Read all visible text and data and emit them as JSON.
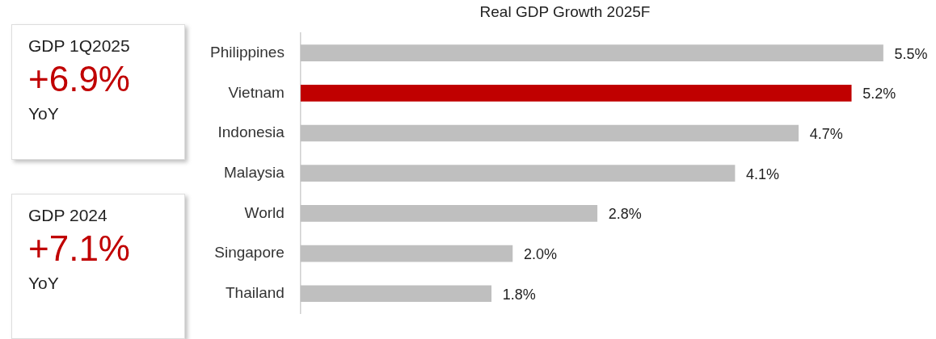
{
  "chart_data": [
    {
      "type": "other",
      "title": "GDP 1Q2025",
      "annotations": [
        "+6.9%",
        "YoY"
      ]
    },
    {
      "type": "other",
      "title": "GDP 2024",
      "annotations": [
        "+7.1%",
        "YoY"
      ]
    },
    {
      "type": "bar",
      "orientation": "horizontal",
      "title": "Real GDP Growth 2025F",
      "categories": [
        "Philippines",
        "Vietnam",
        "Indonesia",
        "Malaysia",
        "World",
        "Singapore",
        "Thailand"
      ],
      "values": [
        5.5,
        5.2,
        4.7,
        4.1,
        2.8,
        2.0,
        1.8
      ],
      "colors": [
        "#bfbfbf",
        "#c00000",
        "#bfbfbf",
        "#bfbfbf",
        "#bfbfbf",
        "#bfbfbf",
        "#bfbfbf"
      ],
      "value_labels": [
        "5.5%",
        "5.2%",
        "4.7%",
        "4.1%",
        "2.8%",
        "2.0%",
        "1.8%"
      ],
      "tick_labels": "y"
    }
  ]
}
